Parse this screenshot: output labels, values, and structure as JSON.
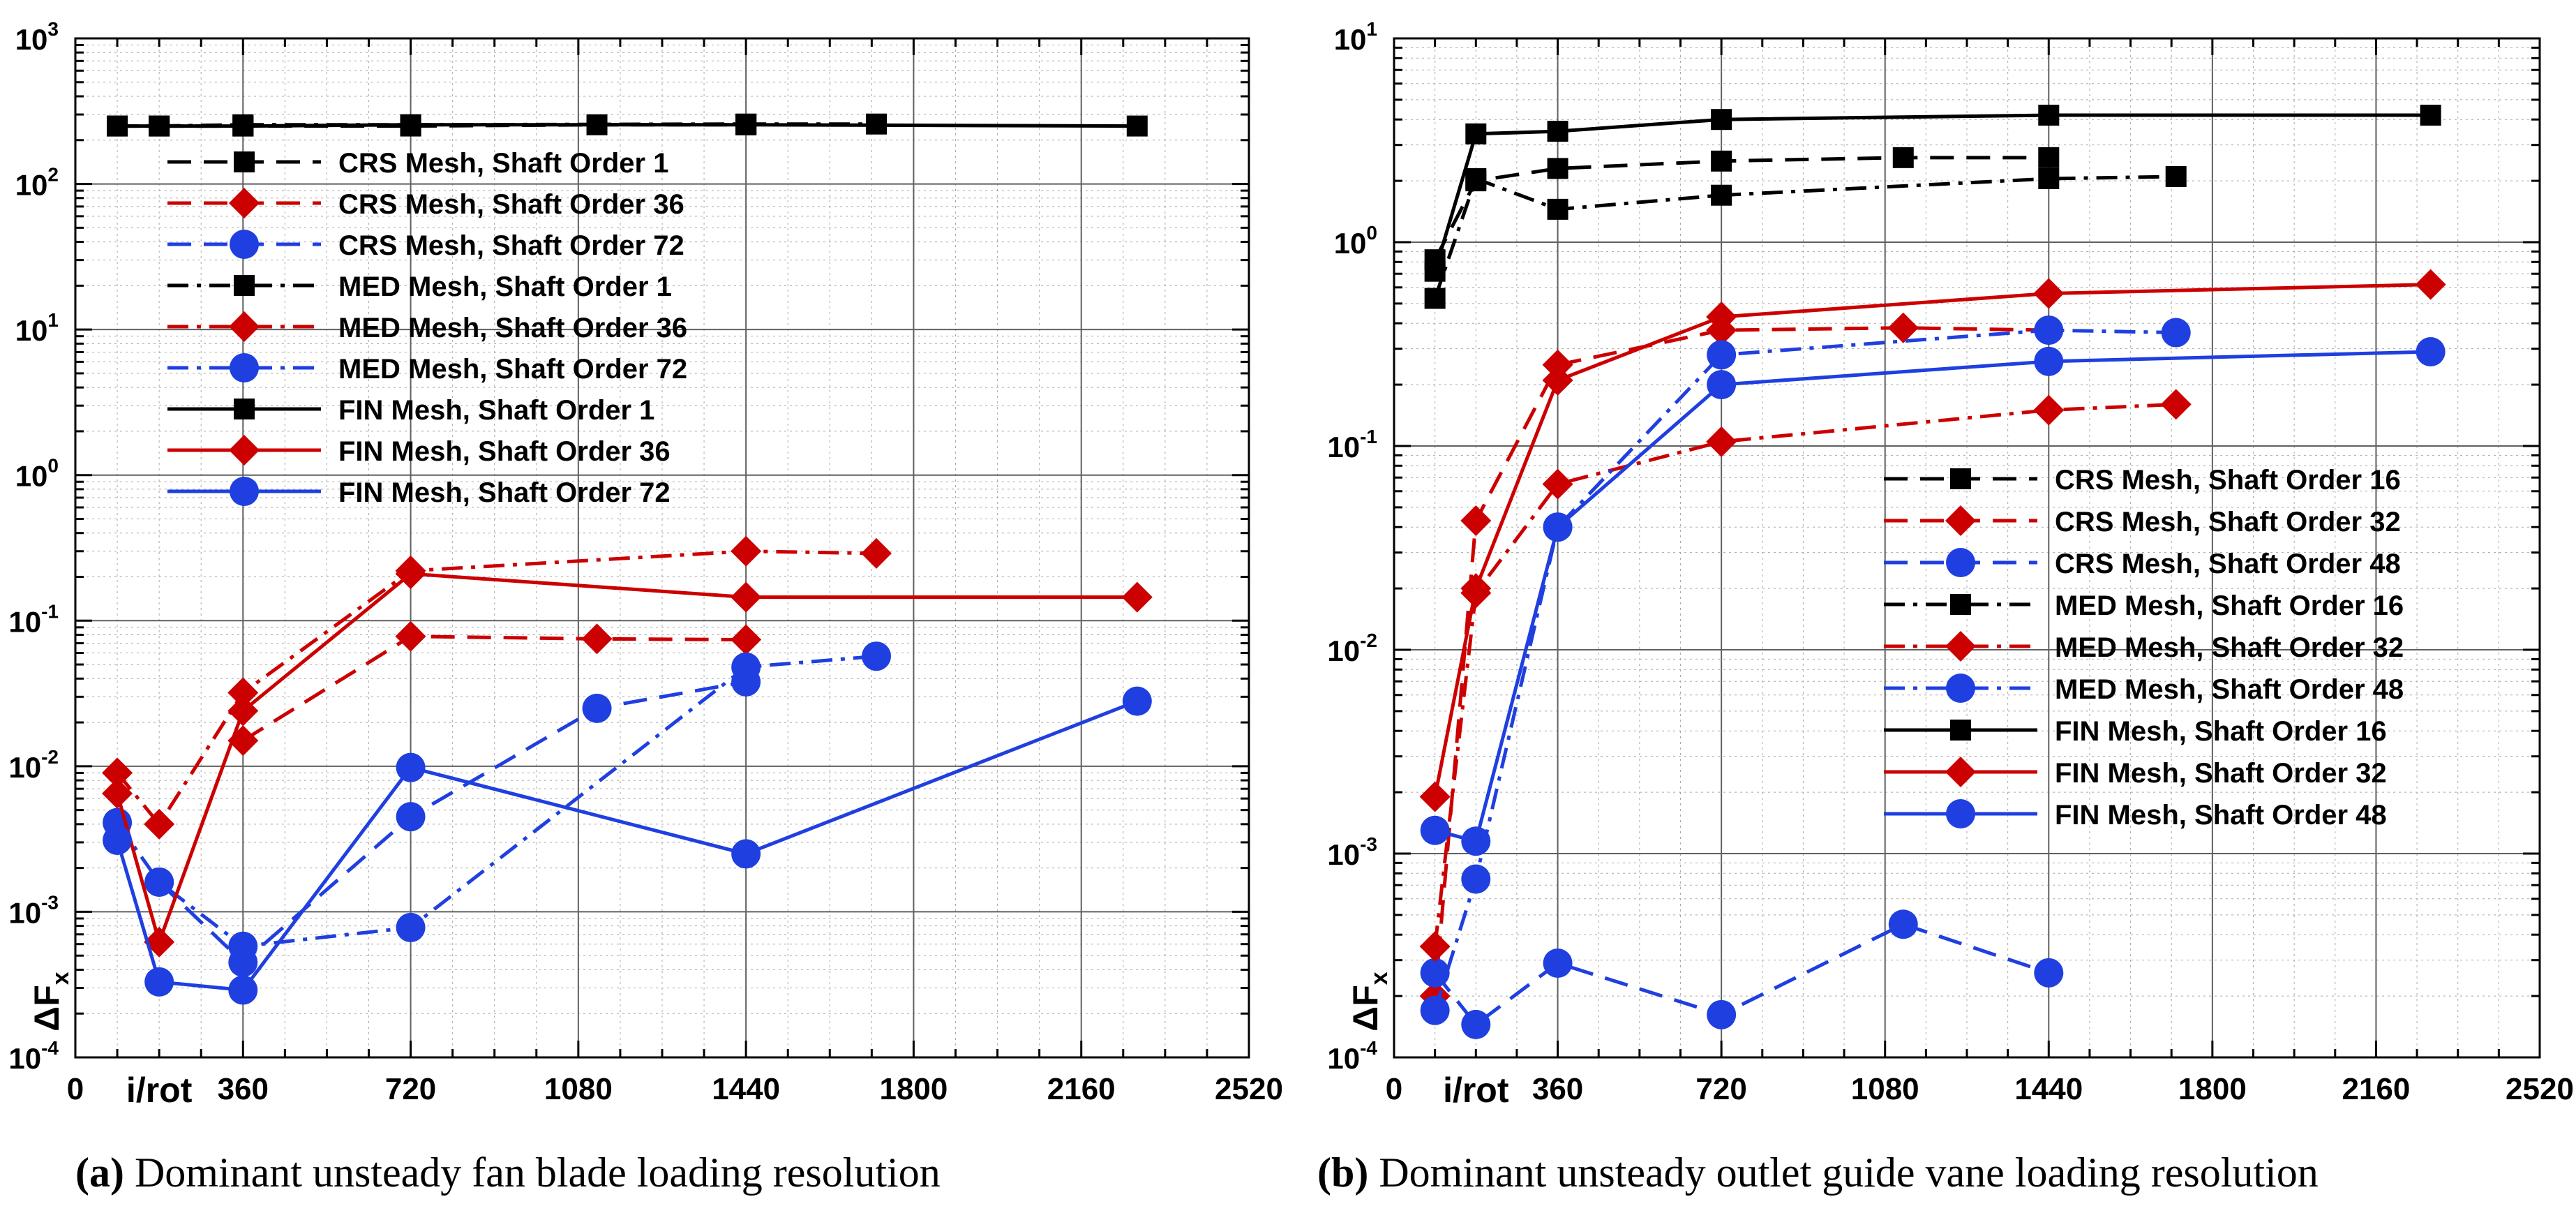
{
  "chart_data": [
    {
      "type": "line",
      "panel": "a",
      "title": "",
      "xlabel": "i/rot",
      "ylabel": "ΔF",
      "ylabel_sub": "x",
      "yscale": "log",
      "xlim": [
        0,
        2520
      ],
      "ylim_exp": [
        -4,
        3
      ],
      "x_ticks": [
        0,
        360,
        720,
        1080,
        1440,
        1800,
        2160,
        2520
      ],
      "x_tick_labels": [
        "0",
        "360",
        "720",
        "1080",
        "1440",
        "1800",
        "2160",
        "2520"
      ],
      "y_tick_base": "10",
      "y_tick_exps": [
        "-4",
        "-3",
        "-2",
        "-1",
        "0",
        "1",
        "2",
        "3"
      ],
      "grid": true,
      "legend_position": "top-left",
      "caption_tag": "(a)",
      "caption_text": " Dominant unsteady fan blade loading resolution",
      "series": [
        {
          "name": "CRS Mesh, Shaft Order 1",
          "color": "#000000",
          "dash": "dash",
          "marker": "square",
          "x": [
            180,
            360,
            720,
            1120,
            1440
          ],
          "y": [
            250,
            250,
            250,
            255,
            255
          ]
        },
        {
          "name": "CRS Mesh, Shaft Order 36",
          "color": "#cc0000",
          "dash": "dash",
          "marker": "diamond",
          "x": [
            360,
            720,
            1120,
            1440
          ],
          "y": [
            0.015,
            0.078,
            0.075,
            0.074
          ]
        },
        {
          "name": "CRS Mesh, Shaft Order 72",
          "color": "#1f3fe0",
          "dash": "dash",
          "marker": "circle",
          "x": [
            180,
            360,
            720,
            1120,
            1440
          ],
          "y": [
            0.0016,
            0.00045,
            0.0045,
            0.025,
            0.038
          ]
        },
        {
          "name": "MED Mesh, Shaft Order 1",
          "color": "#000000",
          "dash": "dashdot",
          "marker": "square",
          "x": [
            90,
            180,
            360,
            720,
            1440,
            1720
          ],
          "y": [
            250,
            250,
            255,
            255,
            258,
            258
          ]
        },
        {
          "name": "MED Mesh, Shaft Order 36",
          "color": "#cc0000",
          "dash": "dashdot",
          "marker": "diamond",
          "x": [
            90,
            180,
            360,
            720,
            1440,
            1720
          ],
          "y": [
            0.009,
            0.004,
            0.032,
            0.22,
            0.3,
            0.29
          ]
        },
        {
          "name": "MED Mesh, Shaft Order 72",
          "color": "#1f3fe0",
          "dash": "dashdot",
          "marker": "circle",
          "x": [
            90,
            180,
            360,
            720,
            1440,
            1720
          ],
          "y": [
            0.0041,
            0.0016,
            0.00058,
            0.00078,
            0.048,
            0.057
          ]
        },
        {
          "name": "FIN Mesh, Shaft Order 1",
          "color": "#000000",
          "dash": "solid",
          "marker": "square",
          "x": [
            90,
            360,
            720,
            1440,
            2280
          ],
          "y": [
            250,
            250,
            255,
            255,
            250
          ]
        },
        {
          "name": "FIN Mesh, Shaft Order 36",
          "color": "#cc0000",
          "dash": "solid",
          "marker": "diamond",
          "x": [
            90,
            180,
            360,
            720,
            1440,
            2280
          ],
          "y": [
            0.0065,
            0.00062,
            0.024,
            0.21,
            0.145,
            0.145
          ]
        },
        {
          "name": "FIN Mesh, Shaft Order 72",
          "color": "#1f3fe0",
          "dash": "solid",
          "marker": "circle",
          "x": [
            90,
            180,
            360,
            720,
            1440,
            2280
          ],
          "y": [
            0.0031,
            0.00033,
            0.00029,
            0.0098,
            0.0025,
            0.028
          ]
        }
      ]
    },
    {
      "type": "line",
      "panel": "b",
      "title": "",
      "xlabel": "i/rot",
      "ylabel": "ΔF",
      "ylabel_sub": "x",
      "yscale": "log",
      "xlim": [
        0,
        2520
      ],
      "ylim_exp": [
        -4,
        1
      ],
      "x_ticks": [
        0,
        360,
        720,
        1080,
        1440,
        1800,
        2160,
        2520
      ],
      "x_tick_labels": [
        "0",
        "360",
        "720",
        "1080",
        "1440",
        "1800",
        "2160",
        "2520"
      ],
      "y_tick_base": "10",
      "y_tick_exps": [
        "-4",
        "-3",
        "-2",
        "-1",
        "0",
        "1"
      ],
      "grid": true,
      "legend_position": "center-right",
      "caption_tag": "(b)",
      "caption_text": " Dominant unsteady outlet guide vane loading resolution",
      "series": [
        {
          "name": "CRS Mesh, Shaft Order 16",
          "color": "#000000",
          "dash": "dash",
          "marker": "square",
          "x": [
            90,
            180,
            360,
            720,
            1120,
            1440
          ],
          "y": [
            0.82,
            2.0,
            2.3,
            2.5,
            2.6,
            2.6
          ]
        },
        {
          "name": "CRS Mesh, Shaft Order 32",
          "color": "#cc0000",
          "dash": "dash",
          "marker": "diamond",
          "x": [
            90,
            180,
            360,
            720,
            1120,
            1440
          ],
          "y": [
            0.0002,
            0.043,
            0.25,
            0.37,
            0.38,
            0.37
          ]
        },
        {
          "name": "CRS Mesh, Shaft Order 48",
          "color": "#1f3fe0",
          "dash": "dash",
          "marker": "circle",
          "x": [
            90,
            180,
            360,
            720,
            1120,
            1440
          ],
          "y": [
            0.00026,
            0.000145,
            0.00029,
            0.000162,
            0.00045,
            0.00026
          ]
        },
        {
          "name": "MED Mesh, Shaft Order 16",
          "color": "#000000",
          "dash": "dashdot",
          "marker": "square",
          "x": [
            90,
            180,
            360,
            720,
            1440,
            1720
          ],
          "y": [
            0.53,
            2.05,
            1.45,
            1.7,
            2.05,
            2.1
          ]
        },
        {
          "name": "MED Mesh, Shaft Order 32",
          "color": "#cc0000",
          "dash": "dashdot",
          "marker": "diamond",
          "x": [
            90,
            180,
            360,
            720,
            1440,
            1720
          ],
          "y": [
            0.00035,
            0.019,
            0.065,
            0.105,
            0.15,
            0.16
          ]
        },
        {
          "name": "MED Mesh, Shaft Order 48",
          "color": "#1f3fe0",
          "dash": "dashdot",
          "marker": "circle",
          "x": [
            90,
            180,
            360,
            720,
            1440,
            1720
          ],
          "y": [
            0.00017,
            0.00075,
            0.04,
            0.28,
            0.37,
            0.36
          ]
        },
        {
          "name": "FIN Mesh, Shaft Order 16",
          "color": "#000000",
          "dash": "solid",
          "marker": "square",
          "x": [
            90,
            180,
            360,
            720,
            1440,
            2280
          ],
          "y": [
            0.72,
            3.4,
            3.5,
            4.0,
            4.2,
            4.2
          ]
        },
        {
          "name": "FIN Mesh, Shaft Order 32",
          "color": "#cc0000",
          "dash": "solid",
          "marker": "diamond",
          "x": [
            90,
            180,
            360,
            720,
            1440,
            2280
          ],
          "y": [
            0.0019,
            0.02,
            0.21,
            0.43,
            0.56,
            0.62
          ]
        },
        {
          "name": "FIN Mesh, Shaft Order 48",
          "color": "#1f3fe0",
          "dash": "solid",
          "marker": "circle",
          "x": [
            90,
            180,
            360,
            720,
            1440,
            2280
          ],
          "y": [
            0.0013,
            0.00115,
            0.04,
            0.2,
            0.26,
            0.29
          ]
        }
      ]
    }
  ]
}
